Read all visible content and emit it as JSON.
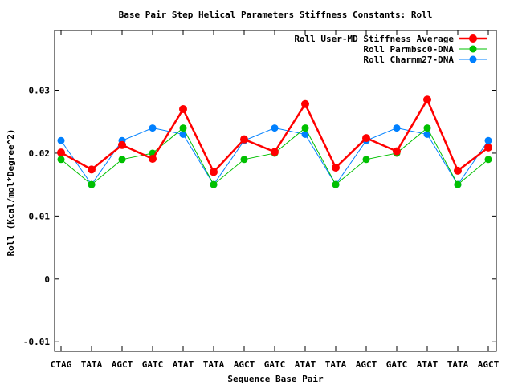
{
  "chart_data": {
    "type": "line",
    "title": "Base Pair Step Helical Parameters Stiffness Constants: Roll",
    "xlabel": "Sequence Base Pair",
    "ylabel": "Roll (Kcal/mol*Degree^2)",
    "categories": [
      "CTAG",
      "TATA",
      "AGCT",
      "GATC",
      "ATAT",
      "TATA",
      "AGCT",
      "GATC",
      "ATAT",
      "TATA",
      "AGCT",
      "GATC",
      "ATAT",
      "TATA",
      "AGCT"
    ],
    "ylim": [
      -0.0115,
      0.0395
    ],
    "yticks": [
      -0.01,
      0,
      0.01,
      0.02,
      0.03
    ],
    "ytick_labels": [
      "-0.01",
      "0",
      "0.01",
      "0.02",
      "0.03"
    ],
    "grid": false,
    "legend_position": "top-right",
    "series": [
      {
        "name": "Roll User-MD Stiffness Average",
        "color": "#ff0000",
        "values": [
          0.0201,
          0.0174,
          0.0213,
          0.0191,
          0.027,
          0.017,
          0.0222,
          0.0202,
          0.0278,
          0.0177,
          0.0224,
          0.0203,
          0.0285,
          0.0172,
          0.0209
        ]
      },
      {
        "name": "Roll Parmbsc0-DNA",
        "color": "#00c000",
        "values": [
          0.019,
          0.015,
          0.019,
          0.02,
          0.024,
          0.015,
          0.019,
          0.02,
          0.024,
          0.015,
          0.019,
          0.02,
          0.024,
          0.015,
          0.019
        ]
      },
      {
        "name": "Roll Charmm27-DNA",
        "color": "#0080ff",
        "values": [
          0.022,
          0.015,
          0.022,
          0.024,
          0.023,
          0.015,
          0.022,
          0.024,
          0.023,
          0.015,
          0.022,
          0.024,
          0.023,
          0.015,
          0.022
        ]
      }
    ]
  }
}
